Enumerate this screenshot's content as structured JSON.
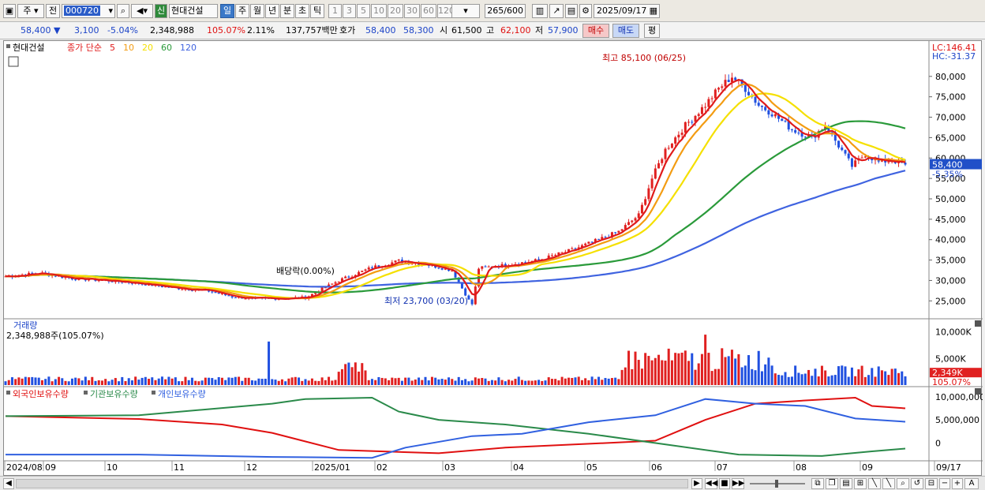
{
  "toolbar": {
    "market": "주",
    "prev": "전",
    "code": "000720",
    "sin": "신",
    "stock_name": "현대건설",
    "periods": [
      "일",
      "주",
      "월",
      "년",
      "분",
      "초",
      "틱"
    ],
    "period_selected": "일",
    "intervals": [
      "1",
      "3",
      "5",
      "10",
      "20",
      "30",
      "60",
      "120"
    ],
    "count": "265",
    "count_total": "/600",
    "date": "2025/09/17"
  },
  "quote": {
    "price": "58,400",
    "change": "3,100",
    "change_pct": "-5.04%",
    "volume": "2,348,988",
    "volume_ratio": "105.07%",
    "turnover": "2.11%",
    "amount": "137,757백만",
    "hoga_label": "호가",
    "ask": "58,400",
    "bid": "58,300",
    "open_label": "시",
    "open": "61,500",
    "high_label": "고",
    "high": "62,100",
    "low_label": "저",
    "low": "57,900",
    "buy_label": "매수",
    "sell_label": "매도",
    "eval_label": "평"
  },
  "price_pane": {
    "name": "현대건설",
    "legend_prefix": "종가 단순",
    "ma_labels": [
      "5",
      "10",
      "20",
      "60",
      "120"
    ],
    "lc": "LC:146.41",
    "hc": "HC:-31.37",
    "current_tag": "58,400",
    "current_pct": "-5.35%",
    "high_annot": "최고 85,100 (06/25)",
    "low_annot": "최저 23,700 (03/20)",
    "div_annot": "배당락(0.00%)"
  },
  "volume_pane": {
    "title": "거래량",
    "info": "2,348,988주(105.07%)",
    "axis": [
      "10,000K",
      "5,000K"
    ],
    "tag": "2,349K",
    "tag_pct": "105.07%"
  },
  "holding_pane": {
    "labels": [
      "외국인보유수량",
      "기관보유수량",
      "개인보유수량"
    ],
    "axis": [
      "10,000,000",
      "5,000,000",
      "0"
    ]
  },
  "colors": {
    "ma5": "#e01a1a",
    "ma10": "#f39c12",
    "ma20": "#f5e000",
    "ma60": "#2a9a3a",
    "ma120": "#3f63e0",
    "up": "#e02020",
    "down": "#2050e0",
    "foreign": "#e01010",
    "inst": "#2a8a4a",
    "indiv": "#3060e0"
  },
  "chart_data": {
    "type": "candlestick",
    "price_axis": {
      "ticks": [
        80000,
        75000,
        70000,
        65000,
        60000,
        55000,
        50000,
        45000,
        40000,
        35000,
        30000,
        25000
      ],
      "labels": [
        "80,000",
        "75,000",
        "70,000",
        "65,000",
        "60,000",
        "55,000",
        "50,000",
        "45,000",
        "40,000",
        "35,000",
        "30,000",
        "25,000"
      ],
      "range": [
        21000,
        87500
      ]
    },
    "x_labels": [
      "2024/08",
      "09",
      "10",
      "11",
      "12",
      "2025/01",
      "02",
      "03",
      "04",
      "05",
      "06",
      "07",
      "08",
      "09",
      "09/17"
    ],
    "close_points": [
      [
        0,
        31000
      ],
      [
        10,
        31800
      ],
      [
        20,
        30500
      ],
      [
        30,
        30000
      ],
      [
        40,
        29300
      ],
      [
        50,
        28200
      ],
      [
        60,
        27600
      ],
      [
        68,
        26000
      ],
      [
        75,
        25500
      ],
      [
        82,
        25600
      ],
      [
        90,
        25800
      ],
      [
        100,
        30000
      ],
      [
        110,
        33200
      ],
      [
        118,
        34800
      ],
      [
        126,
        34000
      ],
      [
        134,
        32500
      ],
      [
        140,
        23700
      ],
      [
        142,
        33000
      ],
      [
        150,
        33800
      ],
      [
        160,
        35000
      ],
      [
        170,
        37500
      ],
      [
        178,
        40000
      ],
      [
        184,
        42000
      ],
      [
        190,
        46000
      ],
      [
        194,
        55000
      ],
      [
        198,
        62000
      ],
      [
        204,
        68000
      ],
      [
        210,
        73000
      ],
      [
        214,
        77000
      ],
      [
        218,
        80000
      ],
      [
        222,
        77000
      ],
      [
        226,
        73000
      ],
      [
        230,
        71000
      ],
      [
        236,
        67000
      ],
      [
        242,
        65000
      ],
      [
        246,
        68000
      ],
      [
        250,
        63000
      ],
      [
        254,
        58000
      ],
      [
        258,
        61000
      ],
      [
        262,
        59000
      ],
      [
        266,
        59500
      ],
      [
        270,
        58400
      ]
    ],
    "ma_last": {
      "ma5": 59800,
      "ma10": 59500,
      "ma20": 60500,
      "ma60": 66500,
      "ma120": 58400
    },
    "high": {
      "value": 85100,
      "date": "06/25"
    },
    "low": {
      "value": 23700,
      "date": "03/20"
    }
  }
}
